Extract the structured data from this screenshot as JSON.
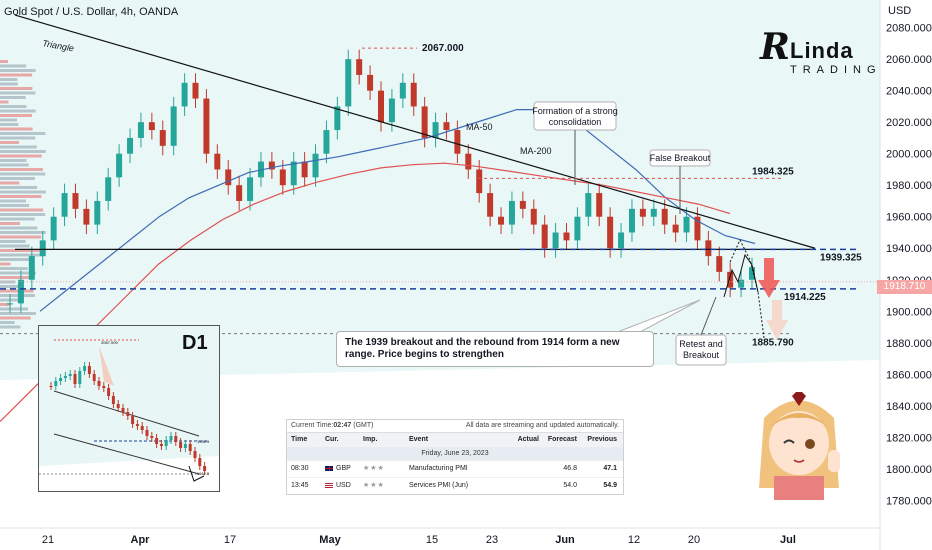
{
  "header": {
    "title": "Gold Spot / U.S. Dollar, 4h, OANDA"
  },
  "logo": {
    "initial": "R",
    "word1": "Linda",
    "word2": "TRADING"
  },
  "chart_data": {
    "type": "candlestick",
    "title": "Gold Spot / U.S. Dollar, 4h, OANDA",
    "y_axis_unit": "USD",
    "ylim": [
      1765,
      2095
    ],
    "y_ticks": [
      2080,
      2060,
      2040,
      2020,
      2000,
      1980,
      1960,
      1940,
      1920,
      1900,
      1880,
      1860,
      1840,
      1820,
      1800,
      1780
    ],
    "y_tick_labels": [
      "2080.000",
      "2060.000",
      "2040.000",
      "2020.000",
      "2000.000",
      "1980.000",
      "1960.000",
      "1940.000",
      "1920.000",
      "1900.000",
      "1880.000",
      "1860.000",
      "1840.000",
      "1820.000",
      "1800.000",
      "1780.000"
    ],
    "x_labels": [
      "21",
      "Apr",
      "17",
      "May",
      "15",
      "23",
      "Jun",
      "12",
      "20",
      "Jul"
    ],
    "current_price": "1918.710",
    "levels": [
      {
        "label": "2067.000",
        "value": 2067
      },
      {
        "label": "1984.325",
        "value": 1984.3
      },
      {
        "label": "1939.325",
        "value": 1939.3
      },
      {
        "label": "1914.225",
        "value": 1914.2
      },
      {
        "label": "1885.790",
        "value": 1885.8
      }
    ],
    "annotations": [
      {
        "text": "Triangle"
      },
      {
        "text": "MA-50"
      },
      {
        "text": "MA-200"
      },
      {
        "text": "Formation of a strong",
        "text2": "consolidation"
      },
      {
        "text": "False Breakout"
      },
      {
        "text": "Retest and",
        "text2": "Breakout"
      }
    ],
    "price_path": [
      1905,
      1920,
      1935,
      1945,
      1960,
      1975,
      1965,
      1955,
      1970,
      1985,
      2000,
      2010,
      2020,
      2015,
      2005,
      2030,
      2045,
      2035,
      2000,
      1990,
      1980,
      1970,
      1985,
      1995,
      1990,
      1980,
      1995,
      1985,
      2000,
      2015,
      2030,
      2060,
      2050,
      2040,
      2020,
      2035,
      2045,
      2030,
      2010,
      2020,
      2015,
      2000,
      1990,
      1975,
      1960,
      1955,
      1970,
      1965,
      1955,
      1940,
      1950,
      1945,
      1960,
      1975,
      1960,
      1940,
      1950,
      1965,
      1960,
      1965,
      1955,
      1950,
      1960,
      1945,
      1935,
      1925,
      1915,
      1920,
      1928
    ],
    "ma50": [
      1900,
      1915,
      1930,
      1945,
      1960,
      1972,
      1980,
      1988,
      1992,
      1995,
      1998,
      2002,
      2006,
      2010,
      2016,
      2022,
      2028,
      2028,
      2020,
      2005,
      1990,
      1972,
      1958,
      1948,
      1943
    ],
    "ma200": [
      1830,
      1850,
      1870,
      1890,
      1910,
      1930,
      1945,
      1958,
      1968,
      1976,
      1982,
      1987,
      1991,
      1993,
      1994,
      1992,
      1989,
      1986,
      1983,
      1980,
      1976,
      1972,
      1968,
      1962
    ],
    "volume_profile_note": "horizontal volume profile at left edge"
  },
  "callout": {
    "text": "The 1939 breakout and the rebound from 1914 form a new range. Price begins to strengthen"
  },
  "inset": {
    "label": "D1",
    "levels": [
      "2067.009",
      "1939.9",
      "1912.5"
    ]
  },
  "calendar": {
    "current_time_label": "Current Time:",
    "current_time": "02:47",
    "tz": "(GMT)",
    "notice": "All data are streaming and updated automatically.",
    "columns": [
      "Time",
      "Cur.",
      "Imp.",
      "Event",
      "Actual",
      "Forecast",
      "Previous"
    ],
    "date": "Friday, June 23, 2023",
    "rows": [
      {
        "time": "08:30",
        "cur": "GBP",
        "imp": "★★★",
        "event": "Manufacturing PMI",
        "actual": "",
        "forecast": "46.8",
        "previous": "47.1",
        "flag": "gb"
      },
      {
        "time": "13:45",
        "cur": "USD",
        "imp": "★★★",
        "event": "Services PMI (Jun)",
        "actual": "",
        "forecast": "54.0",
        "previous": "54.9",
        "flag": "us"
      }
    ]
  },
  "colors": {
    "bull": "#26a69a",
    "bear": "#c0392b",
    "ma50": "#3d6bb3",
    "ma200": "#e05050",
    "bg_area": "#e8f6f6",
    "level_blue": "#1a3f9b",
    "level_red": "#e05050"
  }
}
